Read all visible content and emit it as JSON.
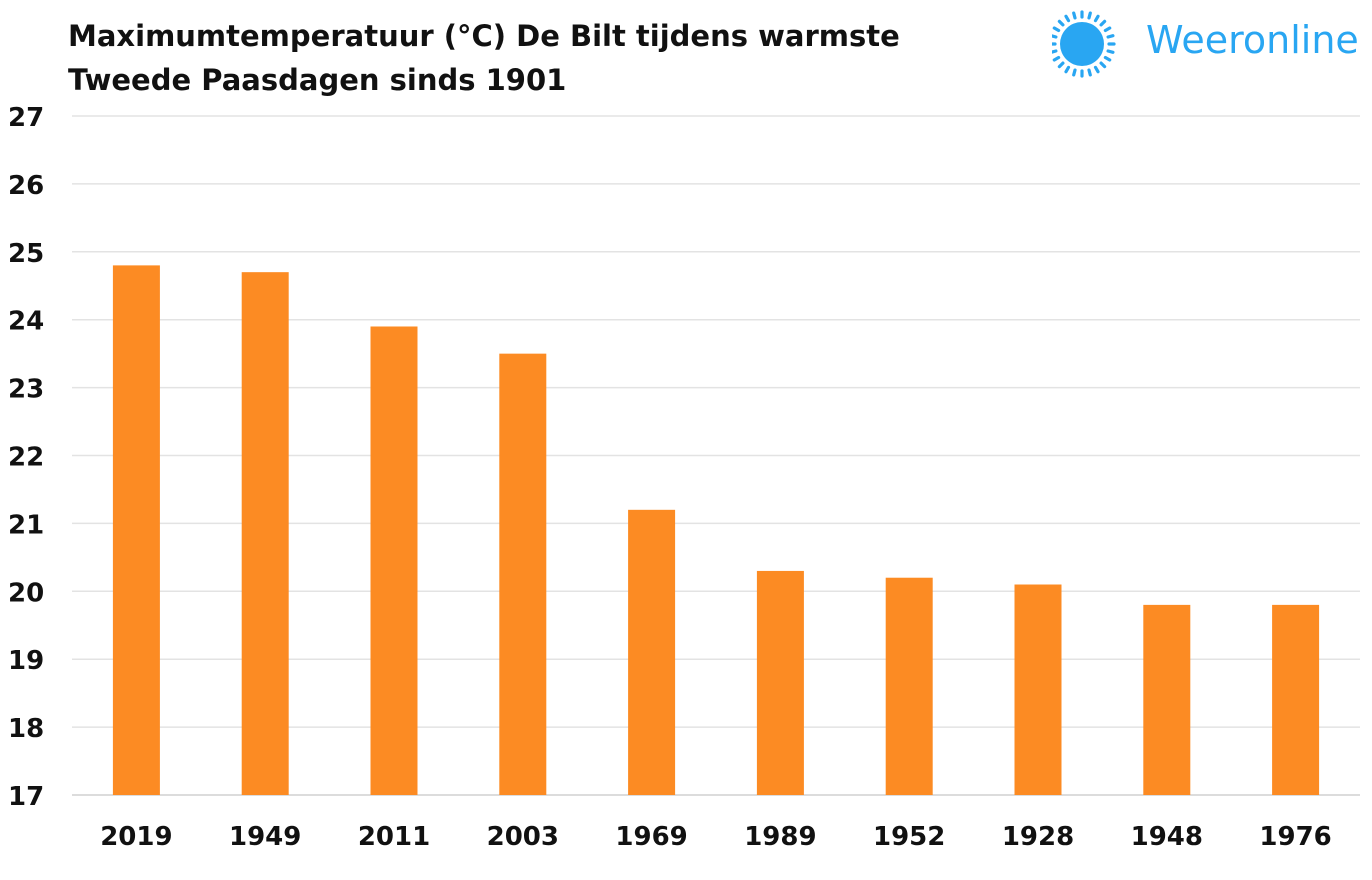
{
  "brand": {
    "name": "Weeronline",
    "color": "#29a6f2",
    "icon": "sun-icon"
  },
  "chart_data": {
    "type": "bar",
    "title_lines": [
      "Maximumtemperatuur (°C) De Bilt tijdens warmste",
      "Tweede Paasdagen sinds 1901"
    ],
    "categories": [
      "2019",
      "1949",
      "2011",
      "2003",
      "1969",
      "1989",
      "1952",
      "1928",
      "1948",
      "1976"
    ],
    "values": [
      24.8,
      24.7,
      23.9,
      23.5,
      21.2,
      20.3,
      20.2,
      20.1,
      19.8,
      19.8
    ],
    "xlabel": "",
    "ylabel": "",
    "ylim": [
      17,
      27
    ],
    "yticks": [
      "17",
      "18",
      "19",
      "20",
      "21",
      "22",
      "23",
      "24",
      "25",
      "26",
      "27"
    ],
    "grid": true,
    "bar_color": "#fc8b23",
    "grid_color": "#e3e3e3"
  }
}
